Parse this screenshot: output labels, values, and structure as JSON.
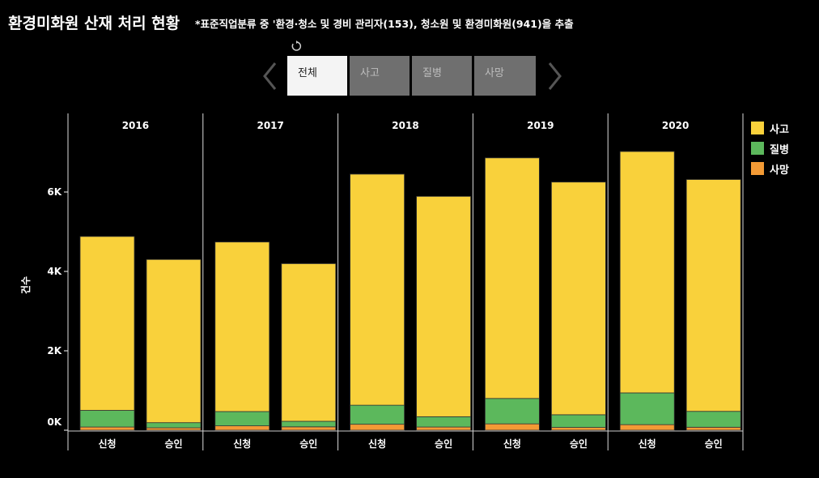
{
  "header": {
    "title": "환경미화원 산재 처리 현황",
    "subtitle": "*표준직업분류 중 '환경·청소 및 경비 관리자(153), 청소원 및 환경미화원(941)을 추출"
  },
  "tabs": [
    {
      "label": "전체",
      "active": true
    },
    {
      "label": "사고",
      "active": false
    },
    {
      "label": "질병",
      "active": false
    },
    {
      "label": "사망",
      "active": false
    }
  ],
  "icons": {
    "reset": "reset-icon",
    "prev": "chevron-left-icon",
    "next": "chevron-right-icon"
  },
  "legend": [
    {
      "label": "사고",
      "color": "#f9d13b"
    },
    {
      "label": "질병",
      "color": "#5cb85c"
    },
    {
      "label": "사망",
      "color": "#f39a35"
    }
  ],
  "chart_data": {
    "type": "bar",
    "stacked": true,
    "ylabel": "건수",
    "yticks": [
      "0K",
      "2K",
      "4K",
      "6K"
    ],
    "ytick_values": [
      0,
      2000,
      4000,
      6000
    ],
    "ylim": [
      0,
      7500
    ],
    "years": [
      "2016",
      "2017",
      "2018",
      "2019",
      "2020"
    ],
    "categories": [
      "신청",
      "승인"
    ],
    "series": [
      {
        "name": "사망",
        "color": "#f39a35",
        "values": [
          [
            80,
            60
          ],
          [
            110,
            85
          ],
          [
            150,
            80
          ],
          [
            160,
            70
          ],
          [
            140,
            75
          ]
        ]
      },
      {
        "name": "질병",
        "color": "#5cb85c",
        "values": [
          [
            420,
            130
          ],
          [
            360,
            140
          ],
          [
            480,
            260
          ],
          [
            640,
            320
          ],
          [
            800,
            400
          ]
        ]
      },
      {
        "name": "사고",
        "color": "#f9d13b",
        "values": [
          [
            4380,
            4110
          ],
          [
            4270,
            3970
          ],
          [
            5820,
            5550
          ],
          [
            6060,
            5860
          ],
          [
            6080,
            5840
          ]
        ]
      }
    ]
  }
}
